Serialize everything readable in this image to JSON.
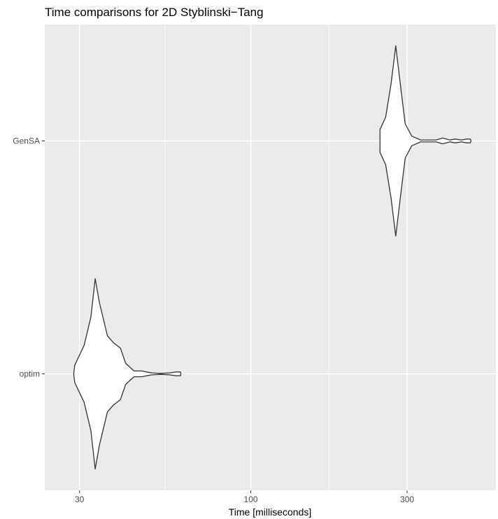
{
  "chart_data": {
    "type": "violin",
    "title": "Time comparisons for 2D Styblinski−Tang",
    "xlabel": "Time [milliseconds]",
    "ylabel": "",
    "x_scale": "log10",
    "xlim": [
      23.5,
      560
    ],
    "x_ticks": [
      30,
      100,
      300
    ],
    "x_tick_labels": [
      "30",
      "100",
      "300"
    ],
    "x_minor_ticks": [
      54.77,
      173.2
    ],
    "categories": [
      "optim",
      "GenSA"
    ],
    "series": [
      {
        "name": "optim",
        "density": [
          {
            "t": 28.8,
            "w": 0.0
          },
          {
            "t": 29.0,
            "w": 0.09
          },
          {
            "t": 31.0,
            "w": 0.3
          },
          {
            "t": 32.5,
            "w": 0.6
          },
          {
            "t": 33.5,
            "w": 1.0
          },
          {
            "t": 34.5,
            "w": 0.75
          },
          {
            "t": 36.5,
            "w": 0.4
          },
          {
            "t": 38.0,
            "w": 0.33
          },
          {
            "t": 40.0,
            "w": 0.27
          },
          {
            "t": 41.5,
            "w": 0.11
          },
          {
            "t": 44.0,
            "w": 0.03
          },
          {
            "t": 46.5,
            "w": 0.03
          },
          {
            "t": 48.0,
            "w": 0.02
          },
          {
            "t": 50.0,
            "w": 0.01
          },
          {
            "t": 53.0,
            "w": 0.005
          },
          {
            "t": 56.5,
            "w": 0.01
          },
          {
            "t": 59.0,
            "w": 0.02
          },
          {
            "t": 61.0,
            "w": 0.02
          },
          {
            "t": 61.2,
            "w": 0.0
          }
        ]
      },
      {
        "name": "GenSA",
        "density": [
          {
            "t": 248,
            "w": 0.0
          },
          {
            "t": 248,
            "w": 0.12
          },
          {
            "t": 258,
            "w": 0.25
          },
          {
            "t": 268,
            "w": 0.6
          },
          {
            "t": 277,
            "w": 1.0
          },
          {
            "t": 286,
            "w": 0.6
          },
          {
            "t": 296,
            "w": 0.18
          },
          {
            "t": 310,
            "w": 0.05
          },
          {
            "t": 330,
            "w": 0.01
          },
          {
            "t": 368,
            "w": 0.01
          },
          {
            "t": 385,
            "w": 0.03
          },
          {
            "t": 405,
            "w": 0.01
          },
          {
            "t": 420,
            "w": 0.02
          },
          {
            "t": 440,
            "w": 0.01
          },
          {
            "t": 455,
            "w": 0.02
          },
          {
            "t": 468,
            "w": 0.02
          },
          {
            "t": 470,
            "w": 0.0
          }
        ]
      }
    ],
    "grid": true,
    "legend": "none",
    "colors": {
      "panel_background": "#ebebeb",
      "grid_major": "#ffffff",
      "violin_fill": "#ffffff",
      "violin_outline": "#333333"
    }
  }
}
